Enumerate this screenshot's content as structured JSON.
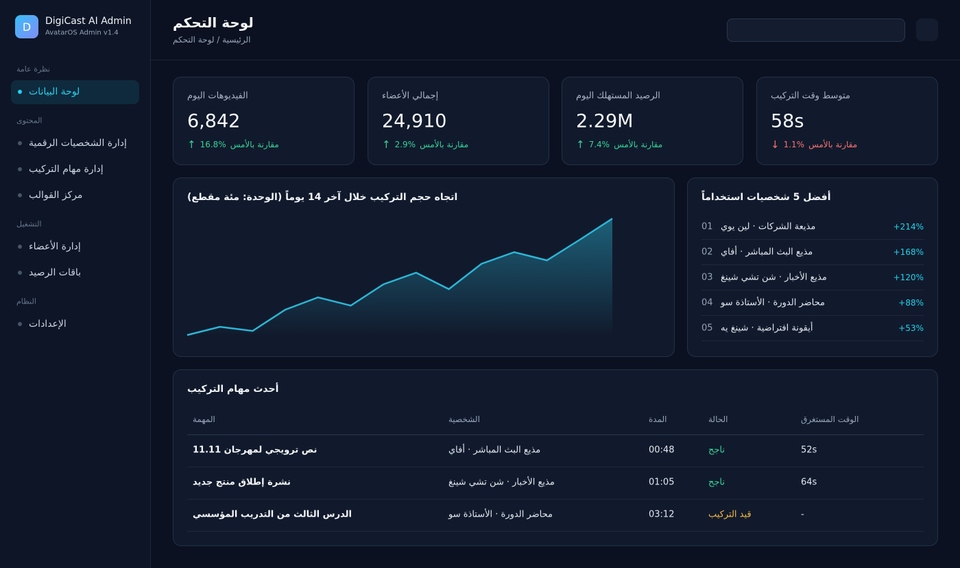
{
  "sidebar": {
    "brand": {
      "logo": "D",
      "name": "DigiCast AI Admin",
      "version": "AvatarOS Admin v1.4"
    },
    "sections": [
      {
        "title": "نظرة عامة",
        "items": [
          "لوحة البيانات"
        ]
      },
      {
        "title": "المحتوى",
        "items": [
          "إدارة الشخصيات الرقمية",
          "إدارة مهام التركيب",
          "مركز القوالب"
        ]
      },
      {
        "title": "التشغيل",
        "items": [
          "إدارة الأعضاء",
          "باقات الرصيد"
        ]
      },
      {
        "title": "النظام",
        "items": [
          "الإعدادات"
        ]
      }
    ]
  },
  "header": {
    "title": "لوحة التحكم",
    "breadcrumb": "الرئيسية / لوحة التحكم"
  },
  "stats": [
    {
      "label": "الفيديوهات اليوم",
      "value": "6,842",
      "change": "16.8%",
      "note": "مقارنة بالأمس",
      "trend": "up",
      "color": "#34d399"
    },
    {
      "label": "إجمالي الأعضاء",
      "value": "24,910",
      "change": "2.9%",
      "note": "مقارنة بالأمس",
      "trend": "up",
      "color": "#34d399"
    },
    {
      "label": "الرصيد المستهلك اليوم",
      "value": "2.29M",
      "change": "7.4%",
      "note": "مقارنة بالأمس",
      "trend": "up",
      "color": "#34d399"
    },
    {
      "label": "متوسط وقت التركيب",
      "value": "58s",
      "change": "1.1%",
      "note": "مقارنة بالأمس",
      "trend": "down",
      "color": "#f87171"
    }
  ],
  "chart_data": {
    "type": "line",
    "title": "اتجاه حجم التركيب خلال آخر 14 يوماً (الوحدة: مئة مقطع)",
    "values": [
      11,
      23,
      17,
      48,
      66,
      54,
      85,
      102,
      78,
      115,
      132,
      120,
      150,
      181
    ],
    "ylim": [
      0,
      200
    ],
    "color": "#2bb6d6"
  },
  "top": {
    "title": "أفضل 5 شخصيات استخداماً",
    "rows": [
      {
        "rank": "01",
        "name": "مذيعة الشركات · لين يوي",
        "growth": "+214%"
      },
      {
        "rank": "02",
        "name": "مذيع البث المباشر · أفاي",
        "growth": "+168%"
      },
      {
        "rank": "03",
        "name": "مذيع الأخبار · شن تشي شينغ",
        "growth": "+120%"
      },
      {
        "rank": "04",
        "name": "محاضر الدورة · الأستاذة سو",
        "growth": "+88%"
      },
      {
        "rank": "05",
        "name": "أيقونة افتراضية · شينغ يه",
        "growth": "+53%"
      }
    ]
  },
  "tasks": {
    "title": "أحدث مهام التركيب",
    "columns": [
      "المهمة",
      "الشخصية",
      "المدة",
      "الحالة",
      "الوقت المستغرق"
    ],
    "rows": [
      {
        "task": "نص ترويجي لمهرجان 11.11",
        "persona": "مذيع البث المباشر · أفاي",
        "duration": "00:48",
        "status": "ناجح",
        "status_color": "#34d399",
        "time": "52s"
      },
      {
        "task": "نشرة إطلاق منتج جديد",
        "persona": "مذيع الأخبار · شن تشي شينغ",
        "duration": "01:05",
        "status": "ناجح",
        "status_color": "#34d399",
        "time": "64s"
      },
      {
        "task": "الدرس الثالث من التدريب المؤسسي",
        "persona": "محاضر الدورة · الأستاذة سو",
        "duration": "03:12",
        "status": "قيد التركيب",
        "status_color": "#f5b942",
        "time": "-"
      }
    ]
  }
}
